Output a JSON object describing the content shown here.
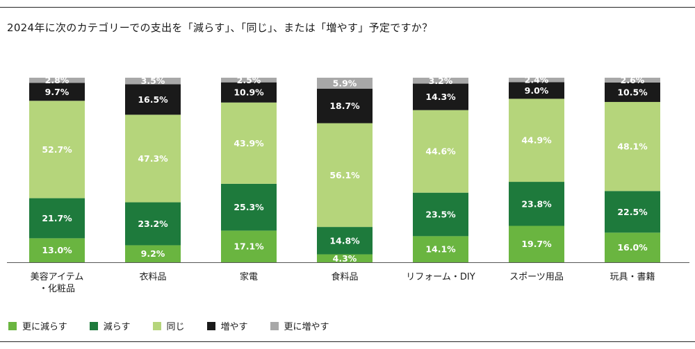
{
  "title": "2024年に次のカテゴリーでの支出を「減らす」、「同じ」、または「増やす」予定ですか？",
  "chart_data": {
    "type": "bar",
    "stacked": true,
    "percent": true,
    "title": "2024年に次のカテゴリーでの支出を「減らす」、「同じ」、または「増やす」予定ですか？",
    "categories": [
      [
        "美容アイテム",
        "・化粧品"
      ],
      [
        "衣料品"
      ],
      [
        "家電"
      ],
      [
        "食料品"
      ],
      [
        "リフォーム・DIY"
      ],
      [
        "スポーツ用品"
      ],
      [
        "玩具・書籍"
      ]
    ],
    "series": [
      {
        "name": "更に減らす",
        "color": "#6ab540",
        "label_color": "#ffffff",
        "values": [
          13.0,
          9.2,
          17.1,
          4.3,
          14.1,
          19.7,
          16.0
        ],
        "labels": [
          "13.0%",
          "9.2%",
          "17.1%",
          "4.3%",
          "14.1%",
          "19.7%",
          "16.0%"
        ]
      },
      {
        "name": "減らす",
        "color": "#1e7a3c",
        "label_color": "#ffffff",
        "values": [
          21.7,
          23.2,
          25.3,
          14.8,
          23.5,
          23.8,
          22.5
        ],
        "labels": [
          "21.7%",
          "23.2%",
          "25.3%",
          "14.8%",
          "23.5%",
          "23.8%",
          "22.5%"
        ]
      },
      {
        "name": "同じ",
        "color": "#b5d57b",
        "label_color": "#ffffff",
        "values": [
          52.7,
          47.3,
          43.9,
          56.1,
          44.6,
          44.9,
          48.1
        ],
        "labels": [
          "52.7%",
          "47.3%",
          "43.9%",
          "56.1%",
          "44.6%",
          "44.9%",
          "48.1%"
        ]
      },
      {
        "name": "増やす",
        "color": "#1a1a1a",
        "label_color": "#ffffff",
        "values": [
          9.7,
          16.5,
          10.9,
          18.7,
          14.3,
          9.0,
          10.5
        ],
        "labels": [
          "9.7%",
          "16.5%",
          "10.9%",
          "18.7%",
          "14.3%",
          "9.0%",
          "10.5%"
        ]
      },
      {
        "name": "更に増やす",
        "color": "#a8a8a8",
        "label_color": "#ffffff",
        "values": [
          2.8,
          3.5,
          2.5,
          5.9,
          3.2,
          2.4,
          2.6
        ],
        "labels": [
          "2.8%",
          "3.5%",
          "2.5%",
          "5.9%",
          "3.2%",
          "2.4%",
          "2.6%"
        ]
      }
    ],
    "ylim": [
      0,
      100
    ],
    "grid": false,
    "legend": "bottom-left"
  }
}
